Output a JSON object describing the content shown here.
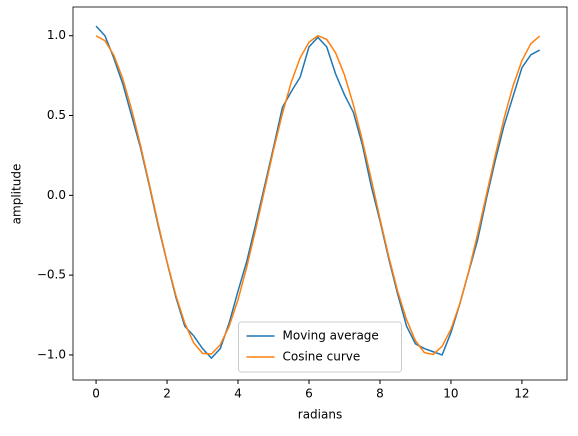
{
  "chart_data": {
    "type": "line",
    "xlabel": "radians",
    "ylabel": "amplitude",
    "x": [
      0,
      0.25,
      0.5,
      0.75,
      1,
      1.25,
      1.5,
      1.75,
      2,
      2.25,
      2.5,
      2.75,
      3,
      3.25,
      3.5,
      3.75,
      4,
      4.25,
      4.5,
      4.75,
      5,
      5.25,
      5.5,
      5.75,
      6,
      6.25,
      6.5,
      6.75,
      7,
      7.25,
      7.5,
      7.75,
      8,
      8.25,
      8.5,
      8.75,
      9,
      9.25,
      9.5,
      9.75,
      10,
      10.25,
      10.5,
      10.75,
      11,
      11.25,
      11.5,
      11.75,
      12,
      12.25,
      12.5
    ],
    "series": [
      {
        "name": "Moving average",
        "color": "#1f77b4",
        "values": [
          1.06,
          1.0,
          0.86,
          0.7,
          0.5,
          0.3,
          0.06,
          -0.19,
          -0.42,
          -0.64,
          -0.82,
          -0.88,
          -0.96,
          -1.02,
          -0.96,
          -0.8,
          -0.6,
          -0.41,
          -0.18,
          0.06,
          0.3,
          0.55,
          0.65,
          0.74,
          0.93,
          0.99,
          0.93,
          0.76,
          0.63,
          0.52,
          0.32,
          0.06,
          -0.16,
          -0.4,
          -0.62,
          -0.82,
          -0.93,
          -0.96,
          -0.98,
          -1.0,
          -0.86,
          -0.68,
          -0.48,
          -0.28,
          -0.02,
          0.22,
          0.44,
          0.62,
          0.8,
          0.88,
          0.91
        ]
      },
      {
        "name": "Cosine curve",
        "color": "#ff7f0e",
        "values": [
          1,
          0.969,
          0.878,
          0.732,
          0.54,
          0.315,
          0.071,
          -0.178,
          -0.416,
          -0.628,
          -0.801,
          -0.924,
          -0.99,
          -0.994,
          -0.936,
          -0.82,
          -0.654,
          -0.446,
          -0.211,
          0.037,
          0.284,
          0.512,
          0.709,
          0.861,
          0.96,
          1.0,
          0.977,
          0.893,
          0.754,
          0.568,
          0.347,
          0.105,
          -0.146,
          -0.386,
          -0.602,
          -0.78,
          -0.911,
          -0.985,
          -0.997,
          -0.946,
          -0.839,
          -0.679,
          -0.476,
          -0.244,
          0.004,
          0.252,
          0.484,
          0.686,
          0.844,
          0.95,
          0.998
        ]
      }
    ],
    "xlim": [
      -0.65,
      13.27
    ],
    "ylim": [
      -1.157,
      1.18
    ],
    "xticks": [
      0,
      2,
      4,
      6,
      8,
      10,
      12
    ],
    "yticks": [
      {
        "value": -1,
        "label": "−1.0"
      },
      {
        "value": -0.5,
        "label": "−0.5"
      },
      {
        "value": 0,
        "label": "0.0"
      },
      0.5,
      {
        "value": 1,
        "label": "1.0"
      }
    ],
    "legend": "lower center"
  }
}
